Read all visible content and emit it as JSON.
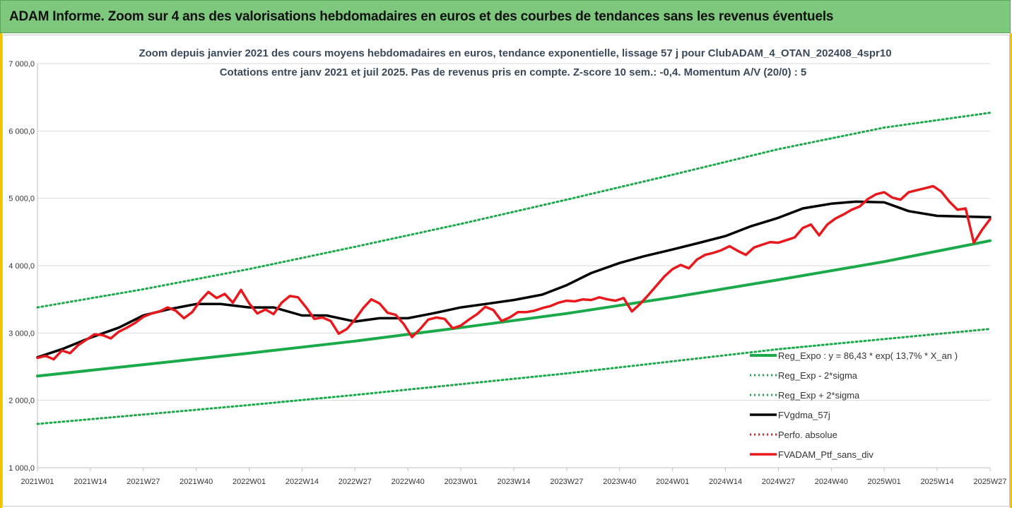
{
  "banner": {
    "title": "ADAM Informe. Zoom sur 4 ans des valorisations hebdomadaires en euros et des courbes de tendances sans les revenus éventuels"
  },
  "colors": {
    "banner_bg": "#7ec87e",
    "trend": "#1aaa4a",
    "smooth": "#000000",
    "portfolio": "#e8181c",
    "perfo": "#e8181c"
  },
  "chart_data": {
    "type": "line",
    "title": "Zoom depuis janvier 2021 des cours moyens hebdomadaires  en euros, tendance exponentielle, lissage 57 j pour ClubADAM_4_OTAN_202408_4spr10",
    "subtitle": "Cotations entre janv 2021 et juil 2025. Pas de revenus pris en compte. Z-score 10 sem.: -0,4. Momentum A/V (20/0) : 5",
    "ylim": [
      1000,
      7000
    ],
    "y_ticks": [
      "1 000,0",
      "2 000,0",
      "3 000,0",
      "4 000,0",
      "5 000,0",
      "6 000,0",
      "7 000,0"
    ],
    "y_tick_values": [
      1000,
      2000,
      3000,
      4000,
      5000,
      6000,
      7000
    ],
    "x_ticks": [
      "2021W01",
      "2021W14",
      "2021W27",
      "2021W40",
      "2022W01",
      "2022W14",
      "2022W27",
      "2022W40",
      "2023W01",
      "2023W14",
      "2023W27",
      "2023W40",
      "2024W01",
      "2024W14",
      "2024W27",
      "2024W40",
      "2025W01",
      "2025W14",
      "2025W27"
    ],
    "x_range_weeks": [
      0,
      234
    ],
    "grid": "horizontal",
    "legend_position": "bottom-right",
    "series": [
      {
        "name": "Reg_Expo : y = 86,43 * exp( 13,7% *  X_an )",
        "style": "solid-green",
        "x": [
          0,
          26,
          52,
          78,
          104,
          130,
          156,
          182,
          208,
          234
        ],
        "y": [
          2360,
          2530,
          2700,
          2880,
          3080,
          3290,
          3530,
          3790,
          4060,
          4370
        ]
      },
      {
        "name": "Reg_Exp - 2*sigma",
        "style": "dotted-green",
        "x": [
          0,
          26,
          52,
          78,
          104,
          130,
          156,
          182,
          208,
          234
        ],
        "y": [
          1650,
          1790,
          1930,
          2080,
          2240,
          2400,
          2580,
          2760,
          2910,
          3060
        ]
      },
      {
        "name": "Reg_Exp + 2*sigma",
        "style": "dotted-green",
        "x": [
          0,
          26,
          52,
          78,
          104,
          130,
          156,
          182,
          208,
          234
        ],
        "y": [
          3380,
          3650,
          3950,
          4280,
          4620,
          4980,
          5350,
          5730,
          6050,
          6270
        ]
      },
      {
        "name": "FVgdma_57j",
        "style": "solid-black",
        "x": [
          0,
          6,
          13,
          20,
          26,
          32,
          39,
          45,
          52,
          58,
          65,
          71,
          78,
          84,
          91,
          97,
          104,
          110,
          117,
          124,
          130,
          136,
          143,
          149,
          156,
          162,
          169,
          175,
          182,
          188,
          195,
          201,
          208,
          214,
          221,
          227,
          234
        ],
        "y": [
          2640,
          2760,
          2930,
          3080,
          3260,
          3350,
          3430,
          3430,
          3380,
          3380,
          3260,
          3260,
          3170,
          3220,
          3220,
          3290,
          3380,
          3430,
          3490,
          3570,
          3710,
          3890,
          4040,
          4140,
          4240,
          4330,
          4440,
          4580,
          4710,
          4850,
          4920,
          4950,
          4940,
          4810,
          4740,
          4730,
          4720
        ]
      },
      {
        "name": "Perfo. absolue",
        "style": "dotted-red",
        "x": [],
        "y": []
      },
      {
        "name": "FVADAM_Ptf_sans_div",
        "style": "solid-red",
        "x": [
          0,
          2,
          4,
          6,
          8,
          10,
          12,
          14,
          16,
          18,
          20,
          22,
          24,
          26,
          28,
          30,
          32,
          34,
          36,
          38,
          40,
          42,
          44,
          46,
          48,
          50,
          52,
          54,
          56,
          58,
          60,
          62,
          64,
          66,
          68,
          70,
          72,
          74,
          76,
          78,
          80,
          82,
          84,
          86,
          88,
          90,
          92,
          94,
          96,
          98,
          100,
          102,
          104,
          106,
          108,
          110,
          112,
          114,
          116,
          118,
          120,
          122,
          124,
          126,
          128,
          130,
          132,
          134,
          136,
          138,
          140,
          142,
          144,
          146,
          148,
          150,
          152,
          154,
          156,
          158,
          160,
          162,
          164,
          166,
          168,
          170,
          172,
          174,
          176,
          178,
          180,
          182,
          184,
          186,
          188,
          190,
          192,
          194,
          196,
          198,
          200,
          202,
          204,
          206,
          208,
          210,
          212,
          214,
          216,
          218,
          220,
          222,
          224,
          226,
          228,
          230,
          232,
          234
        ],
        "y": [
          2630,
          2660,
          2610,
          2740,
          2700,
          2820,
          2900,
          2980,
          2970,
          2920,
          3020,
          3080,
          3150,
          3240,
          3290,
          3320,
          3380,
          3330,
          3220,
          3310,
          3480,
          3610,
          3520,
          3580,
          3450,
          3640,
          3440,
          3290,
          3350,
          3280,
          3450,
          3550,
          3530,
          3380,
          3210,
          3230,
          3180,
          2990,
          3060,
          3200,
          3370,
          3500,
          3440,
          3300,
          3270,
          3130,
          2940,
          3060,
          3200,
          3230,
          3210,
          3070,
          3110,
          3200,
          3280,
          3390,
          3340,
          3180,
          3230,
          3310,
          3310,
          3330,
          3370,
          3400,
          3450,
          3480,
          3470,
          3500,
          3490,
          3530,
          3500,
          3480,
          3520,
          3320,
          3430,
          3560,
          3700,
          3840,
          3950,
          4010,
          3960,
          4090,
          4160,
          4190,
          4230,
          4290,
          4220,
          4160,
          4270,
          4310,
          4350,
          4340,
          4380,
          4420,
          4560,
          4610,
          4450,
          4610,
          4700,
          4760,
          4830,
          4880,
          4990,
          5060,
          5090,
          5010,
          4980,
          5090,
          5120,
          5150,
          5180,
          5100,
          4950,
          4830,
          4850,
          4340,
          4530,
          4690
        ]
      }
    ]
  }
}
